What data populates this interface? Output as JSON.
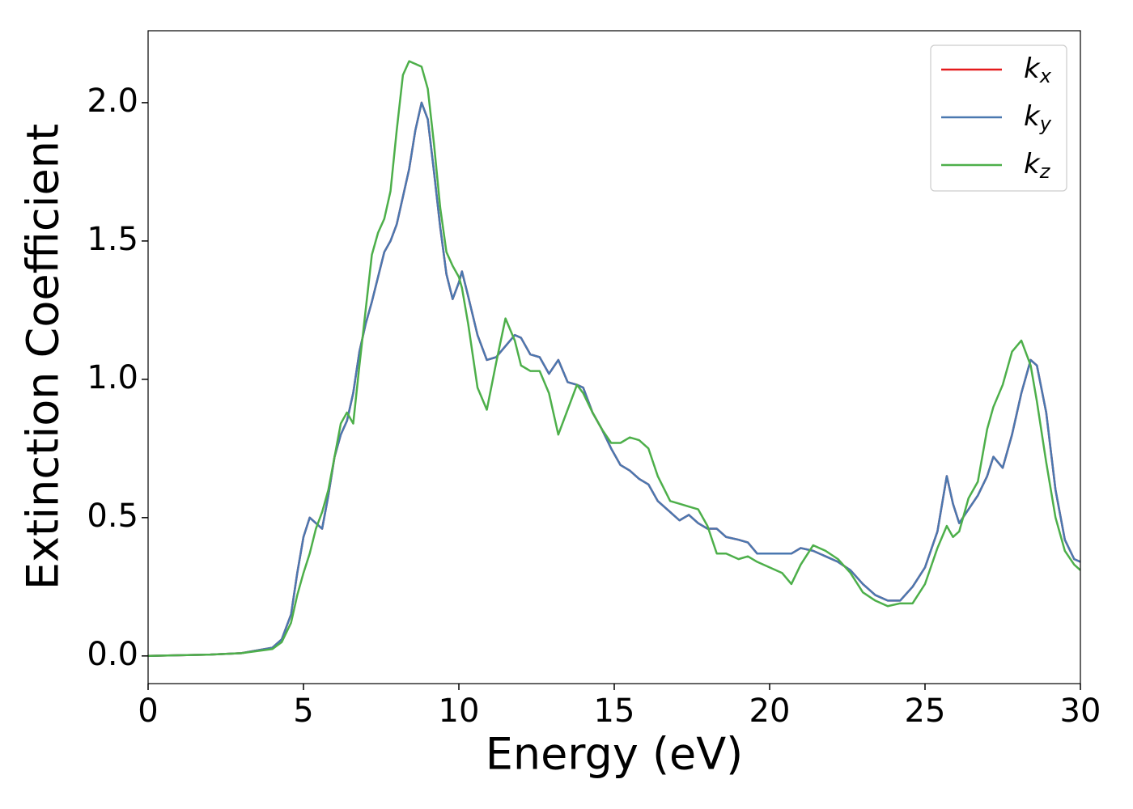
{
  "chart_data": {
    "type": "line",
    "xlabel": "Energy (eV)",
    "ylabel": "Extinction Coefficient",
    "x": [
      0,
      2,
      3,
      4,
      4.3,
      4.6,
      4.8,
      5.0,
      5.2,
      5.4,
      5.6,
      5.8,
      6.0,
      6.2,
      6.4,
      6.6,
      6.8,
      7.0,
      7.2,
      7.4,
      7.6,
      7.8,
      8.0,
      8.2,
      8.4,
      8.6,
      8.8,
      9.0,
      9.2,
      9.4,
      9.6,
      9.8,
      10.0,
      10.1,
      10.3,
      10.6,
      10.9,
      11.2,
      11.5,
      11.8,
      12.0,
      12.3,
      12.6,
      12.9,
      13.2,
      13.5,
      13.8,
      14.0,
      14.3,
      14.6,
      14.9,
      15.2,
      15.5,
      15.8,
      16.1,
      16.4,
      16.8,
      17.1,
      17.4,
      17.7,
      18.0,
      18.3,
      18.6,
      19.0,
      19.3,
      19.6,
      20.0,
      20.4,
      20.7,
      21.0,
      21.4,
      21.8,
      22.2,
      22.6,
      23.0,
      23.4,
      23.8,
      24.2,
      24.6,
      25.0,
      25.4,
      25.7,
      25.9,
      26.1,
      26.4,
      26.7,
      27.0,
      27.2,
      27.5,
      27.8,
      28.1,
      28.4,
      28.6,
      28.9,
      29.2,
      29.5,
      29.8,
      30.0
    ],
    "series": [
      {
        "name": "kx",
        "color": "#e41a1c",
        "values": [
          0,
          0.005,
          0.01,
          0.03,
          0.06,
          0.15,
          0.3,
          0.43,
          0.5,
          0.48,
          0.46,
          0.58,
          0.72,
          0.8,
          0.85,
          0.95,
          1.1,
          1.2,
          1.28,
          1.37,
          1.46,
          1.5,
          1.56,
          1.66,
          1.76,
          1.9,
          2.0,
          1.94,
          1.75,
          1.55,
          1.38,
          1.29,
          1.35,
          1.39,
          1.3,
          1.16,
          1.07,
          1.08,
          1.12,
          1.16,
          1.15,
          1.09,
          1.08,
          1.02,
          1.07,
          0.99,
          0.98,
          0.97,
          0.88,
          0.82,
          0.75,
          0.69,
          0.67,
          0.64,
          0.62,
          0.56,
          0.52,
          0.49,
          0.51,
          0.48,
          0.46,
          0.46,
          0.43,
          0.42,
          0.41,
          0.37,
          0.37,
          0.37,
          0.37,
          0.39,
          0.38,
          0.36,
          0.34,
          0.31,
          0.26,
          0.22,
          0.2,
          0.2,
          0.25,
          0.32,
          0.45,
          0.65,
          0.55,
          0.48,
          0.53,
          0.58,
          0.65,
          0.72,
          0.68,
          0.8,
          0.95,
          1.07,
          1.05,
          0.88,
          0.6,
          0.42,
          0.35,
          0.34
        ]
      },
      {
        "name": "ky",
        "color": "#4a78b0",
        "values": [
          0,
          0.005,
          0.01,
          0.03,
          0.06,
          0.15,
          0.3,
          0.43,
          0.5,
          0.48,
          0.46,
          0.58,
          0.72,
          0.8,
          0.85,
          0.95,
          1.1,
          1.2,
          1.28,
          1.37,
          1.46,
          1.5,
          1.56,
          1.66,
          1.76,
          1.9,
          2.0,
          1.94,
          1.75,
          1.55,
          1.38,
          1.29,
          1.35,
          1.39,
          1.3,
          1.16,
          1.07,
          1.08,
          1.12,
          1.16,
          1.15,
          1.09,
          1.08,
          1.02,
          1.07,
          0.99,
          0.98,
          0.97,
          0.88,
          0.82,
          0.75,
          0.69,
          0.67,
          0.64,
          0.62,
          0.56,
          0.52,
          0.49,
          0.51,
          0.48,
          0.46,
          0.46,
          0.43,
          0.42,
          0.41,
          0.37,
          0.37,
          0.37,
          0.37,
          0.39,
          0.38,
          0.36,
          0.34,
          0.31,
          0.26,
          0.22,
          0.2,
          0.2,
          0.25,
          0.32,
          0.45,
          0.65,
          0.55,
          0.48,
          0.53,
          0.58,
          0.65,
          0.72,
          0.68,
          0.8,
          0.95,
          1.07,
          1.05,
          0.88,
          0.6,
          0.42,
          0.35,
          0.34
        ]
      },
      {
        "name": "kz",
        "color": "#4daf4a",
        "values": [
          0,
          0.005,
          0.01,
          0.025,
          0.05,
          0.12,
          0.22,
          0.3,
          0.37,
          0.46,
          0.52,
          0.6,
          0.72,
          0.84,
          0.88,
          0.84,
          1.05,
          1.25,
          1.45,
          1.53,
          1.58,
          1.68,
          1.9,
          2.1,
          2.15,
          2.14,
          2.13,
          2.05,
          1.85,
          1.62,
          1.46,
          1.41,
          1.37,
          1.33,
          1.2,
          0.97,
          0.89,
          1.06,
          1.22,
          1.14,
          1.05,
          1.03,
          1.03,
          0.95,
          0.8,
          0.89,
          0.98,
          0.95,
          0.88,
          0.82,
          0.77,
          0.77,
          0.79,
          0.78,
          0.75,
          0.65,
          0.56,
          0.55,
          0.54,
          0.53,
          0.47,
          0.37,
          0.37,
          0.35,
          0.36,
          0.34,
          0.32,
          0.3,
          0.26,
          0.33,
          0.4,
          0.38,
          0.35,
          0.3,
          0.23,
          0.2,
          0.18,
          0.19,
          0.19,
          0.26,
          0.39,
          0.47,
          0.43,
          0.45,
          0.57,
          0.63,
          0.82,
          0.9,
          0.98,
          1.1,
          1.14,
          1.05,
          0.92,
          0.7,
          0.5,
          0.38,
          0.33,
          0.31
        ]
      }
    ],
    "xlim": [
      0,
      30
    ],
    "xticks": [
      0,
      5,
      10,
      15,
      20,
      25,
      30
    ],
    "ylim": [
      -0.1,
      2.26
    ],
    "yticks": [
      {
        "value": 0,
        "label": "0.0"
      },
      0.5,
      {
        "value": 1,
        "label": "1.0"
      },
      1.5,
      {
        "value": 2,
        "label": "2.0"
      }
    ],
    "legend": "upper right"
  }
}
